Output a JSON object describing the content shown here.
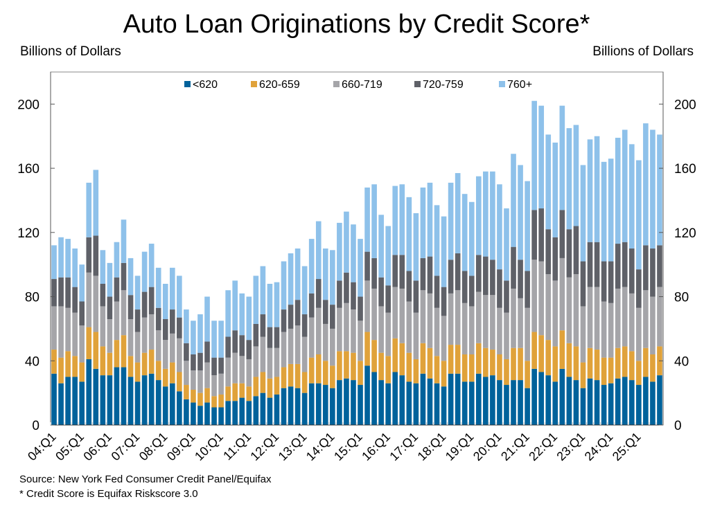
{
  "chart_data": {
    "type": "bar",
    "stacked": true,
    "title": "Auto Loan Originations by Credit Score*",
    "ylabel_left": "Billions of Dollars",
    "ylabel_right": "Billions of Dollars",
    "ylim": [
      0,
      220
    ],
    "yticks": [
      0,
      40,
      80,
      120,
      160,
      200
    ],
    "grid": false,
    "legend_position": "top",
    "xtick_labels": [
      "04:Q1",
      "05:Q1",
      "06:Q1",
      "07:Q1",
      "08:Q1",
      "09:Q1",
      "10:Q1",
      "11:Q1",
      "12:Q1",
      "13:Q1",
      "14:Q1",
      "15:Q1",
      "16:Q1",
      "17:Q1",
      "18:Q1",
      "19:Q1",
      "20:Q1",
      "21:Q1",
      "22:Q1",
      "23:Q1",
      "24:Q1",
      "25:Q1"
    ],
    "series": [
      {
        "name": "<620",
        "color": "#00629b",
        "values": [
          32,
          26,
          30,
          30,
          27,
          41,
          35,
          31,
          31,
          36,
          36,
          30,
          27,
          31,
          32,
          28,
          24,
          26,
          21,
          16,
          14,
          12,
          14,
          11,
          11,
          15,
          15,
          17,
          15,
          18,
          20,
          17,
          19,
          23,
          24,
          23,
          20,
          26,
          26,
          25,
          23,
          28,
          29,
          28,
          25,
          37,
          33,
          28,
          26,
          33,
          31,
          27,
          26,
          32,
          29,
          26,
          24,
          32,
          32,
          27,
          27,
          32,
          30,
          31,
          28,
          25,
          28,
          28,
          23,
          35,
          33,
          31,
          27,
          35,
          30,
          28,
          23,
          29,
          28,
          25,
          26,
          29,
          30,
          28,
          25,
          30,
          27,
          31
        ]
      },
      {
        "name": "620-659",
        "color": "#e0a23a",
        "values": [
          15,
          16,
          16,
          13,
          12,
          20,
          23,
          18,
          14,
          17,
          20,
          13,
          12,
          14,
          15,
          12,
          11,
          13,
          12,
          9,
          8,
          8,
          9,
          7,
          8,
          9,
          11,
          9,
          9,
          12,
          13,
          12,
          11,
          13,
          14,
          15,
          13,
          16,
          18,
          15,
          14,
          18,
          17,
          17,
          15,
          21,
          20,
          17,
          17,
          21,
          20,
          18,
          15,
          19,
          19,
          17,
          16,
          18,
          18,
          17,
          17,
          19,
          18,
          16,
          16,
          16,
          20,
          20,
          17,
          23,
          23,
          22,
          22,
          24,
          21,
          21,
          16,
          19,
          19,
          17,
          16,
          19,
          19,
          18,
          15,
          18,
          17,
          18
        ]
      },
      {
        "name": "660-719",
        "color": "#a5a5a9",
        "values": [
          27,
          32,
          27,
          27,
          23,
          34,
          35,
          25,
          21,
          24,
          28,
          23,
          19,
          22,
          22,
          19,
          18,
          18,
          21,
          15,
          12,
          14,
          16,
          13,
          13,
          18,
          19,
          17,
          17,
          19,
          22,
          19,
          18,
          22,
          22,
          24,
          22,
          25,
          29,
          23,
          23,
          27,
          30,
          27,
          25,
          32,
          32,
          29,
          27,
          32,
          34,
          32,
          29,
          33,
          34,
          30,
          28,
          32,
          34,
          32,
          30,
          32,
          33,
          34,
          29,
          29,
          37,
          31,
          33,
          45,
          46,
          41,
          41,
          45,
          41,
          45,
          35,
          38,
          39,
          35,
          34,
          37,
          37,
          36,
          33,
          36,
          36,
          37
        ]
      },
      {
        "name": "720-759",
        "color": "#5f6168",
        "values": [
          17,
          18,
          19,
          16,
          15,
          22,
          25,
          14,
          14,
          15,
          17,
          15,
          14,
          16,
          17,
          14,
          13,
          15,
          13,
          11,
          10,
          11,
          13,
          11,
          10,
          13,
          14,
          13,
          12,
          14,
          14,
          13,
          13,
          14,
          15,
          16,
          14,
          15,
          18,
          15,
          15,
          17,
          19,
          17,
          15,
          18,
          19,
          18,
          17,
          20,
          21,
          19,
          20,
          20,
          23,
          20,
          18,
          21,
          23,
          20,
          19,
          23,
          24,
          22,
          24,
          20,
          26,
          24,
          23,
          31,
          33,
          28,
          27,
          30,
          30,
          30,
          28,
          28,
          28,
          25,
          26,
          28,
          28,
          28,
          24,
          28,
          30,
          26
        ]
      },
      {
        "name": "760+",
        "color": "#8ec1ea",
        "values": [
          21,
          25,
          24,
          24,
          23,
          34,
          41,
          21,
          21,
          22,
          27,
          23,
          21,
          25,
          27,
          25,
          22,
          26,
          26,
          21,
          21,
          24,
          28,
          23,
          23,
          29,
          31,
          26,
          27,
          30,
          30,
          27,
          28,
          30,
          32,
          32,
          30,
          34,
          36,
          32,
          34,
          36,
          38,
          36,
          36,
          40,
          46,
          39,
          37,
          43,
          44,
          46,
          42,
          44,
          46,
          44,
          44,
          48,
          50,
          48,
          46,
          49,
          53,
          55,
          53,
          45,
          58,
          59,
          56,
          68,
          64,
          59,
          59,
          65,
          63,
          63,
          60,
          64,
          66,
          62,
          64,
          66,
          70,
          65,
          68,
          76,
          74,
          69
        ]
      }
    ]
  },
  "footer": {
    "source": "Source: New York Fed Consumer Credit Panel/Equifax",
    "note": "* Credit Score is Equifax Riskscore 3.0"
  }
}
